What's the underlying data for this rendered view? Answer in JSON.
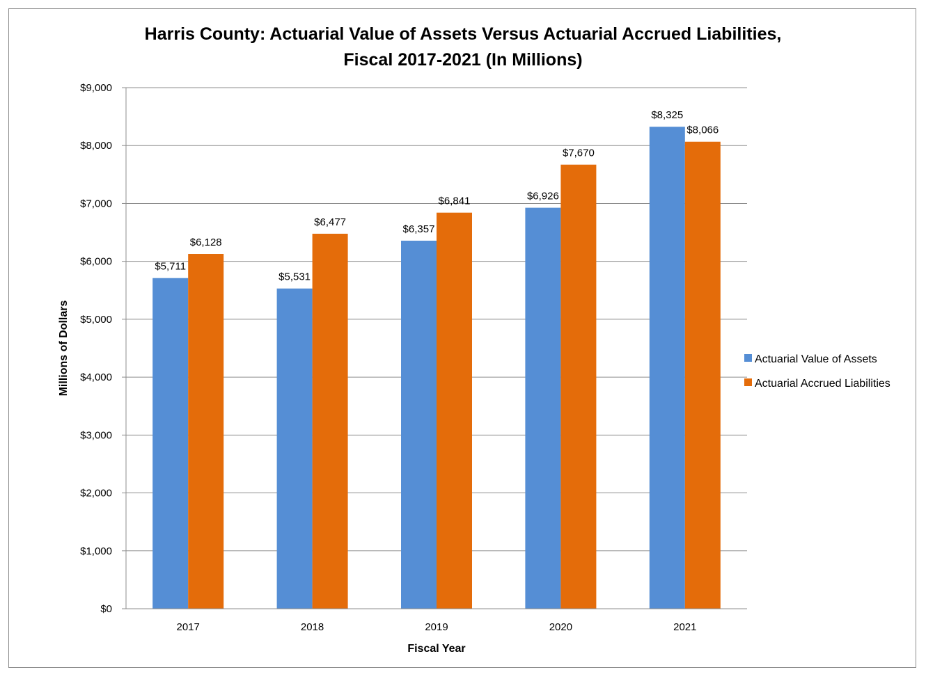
{
  "chart_data": {
    "type": "bar",
    "title_lines": [
      "Harris County: Actuarial Value of Assets Versus Actuarial Accrued Liabilities,",
      "Fiscal 2017-2021 (In Millions)"
    ],
    "xlabel": "Fiscal Year",
    "ylabel": "Millions of Dollars",
    "categories": [
      "2017",
      "2018",
      "2019",
      "2020",
      "2021"
    ],
    "ylim": [
      0,
      9000
    ],
    "yticks": [
      0,
      1000,
      2000,
      3000,
      4000,
      5000,
      6000,
      7000,
      8000,
      9000
    ],
    "ytick_labels": [
      "$0",
      "$1,000",
      "$2,000",
      "$3,000",
      "$4,000",
      "$5,000",
      "$6,000",
      "$7,000",
      "$8,000",
      "$9,000"
    ],
    "grid": true,
    "legend_position": "right",
    "series": [
      {
        "name": "Actuarial Value of Assets",
        "color": "#558ed5",
        "values": [
          5711,
          5531,
          6357,
          6926,
          8325
        ],
        "labels": [
          "$5,711",
          "$5,531",
          "$6,357",
          "$6,926",
          "$8,325"
        ]
      },
      {
        "name": "Actuarial Accrued Liabilities",
        "color": "#e46c0a",
        "values": [
          6128,
          6477,
          6841,
          7670,
          8066
        ],
        "labels": [
          "$6,128",
          "$6,477",
          "$6,841",
          "$7,670",
          "$8,066"
        ]
      }
    ]
  }
}
